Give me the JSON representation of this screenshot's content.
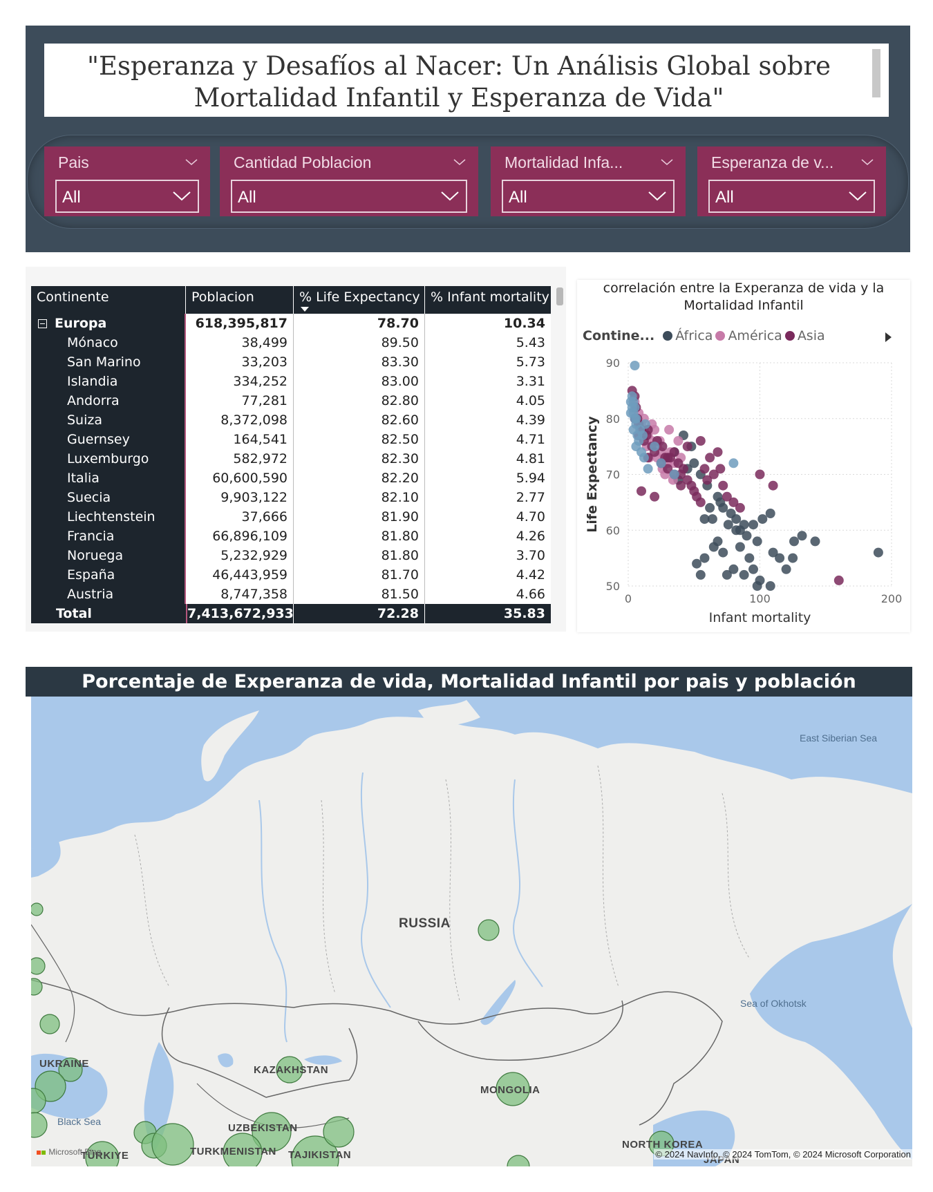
{
  "title": "\"Esperanza y Desafíos al Nacer: Un Análisis Global sobre Mortalidad Infantil y Esperanza de Vida\"",
  "slicers": [
    {
      "label": "Pais",
      "value": "All"
    },
    {
      "label": "Cantidad Poblacion",
      "value": "All"
    },
    {
      "label": "Mortalidad Infa...",
      "value": "All"
    },
    {
      "label": "Esperanza de v...",
      "value": "All"
    }
  ],
  "matrix": {
    "headers": [
      "Continente",
      "Poblacion",
      "% Life Expectancy",
      "% Infant mortality"
    ],
    "group": {
      "name": "Europa",
      "population": "618,395,817",
      "life": "78.70",
      "infant": "10.34"
    },
    "rows": [
      {
        "name": "Mónaco",
        "population": "38,499",
        "life": "89.50",
        "infant": "5.43"
      },
      {
        "name": "San Marino",
        "population": "33,203",
        "life": "83.30",
        "infant": "5.73"
      },
      {
        "name": "Islandia",
        "population": "334,252",
        "life": "83.00",
        "infant": "3.31"
      },
      {
        "name": "Andorra",
        "population": "77,281",
        "life": "82.80",
        "infant": "4.05"
      },
      {
        "name": "Suiza",
        "population": "8,372,098",
        "life": "82.60",
        "infant": "4.39"
      },
      {
        "name": "Guernsey",
        "population": "164,541",
        "life": "82.50",
        "infant": "4.71"
      },
      {
        "name": "Luxemburgo",
        "population": "582,972",
        "life": "82.30",
        "infant": "4.81"
      },
      {
        "name": "Italia",
        "population": "60,600,590",
        "life": "82.20",
        "infant": "5.94"
      },
      {
        "name": "Suecia",
        "population": "9,903,122",
        "life": "82.10",
        "infant": "2.77"
      },
      {
        "name": "Liechtenstein",
        "population": "37,666",
        "life": "81.90",
        "infant": "4.70"
      },
      {
        "name": "Francia",
        "population": "66,896,109",
        "life": "81.80",
        "infant": "4.26"
      },
      {
        "name": "Noruega",
        "population": "5,232,929",
        "life": "81.80",
        "infant": "3.70"
      },
      {
        "name": "España",
        "population": "46,443,959",
        "life": "81.70",
        "infant": "4.42"
      },
      {
        "name": "Austria",
        "population": "8,747,358",
        "life": "81.50",
        "infant": "4.66"
      }
    ],
    "total": {
      "name": "Total",
      "population": "7,413,672,933",
      "life": "72.28",
      "infant": "35.83"
    }
  },
  "scatter": {
    "title": "correlación entre la Experanza de vida y la Mortalidad Infantil",
    "legend_title": "Contine...",
    "legend": [
      {
        "name": "África",
        "color": "#3d4c5a"
      },
      {
        "name": "América",
        "color": "#c77aa8"
      },
      {
        "name": "Asia",
        "color": "#7a2a5c"
      }
    ]
  },
  "chart_data": {
    "type": "scatter",
    "title": "correlación entre la Experanza de vida y la Mortalidad Infantil",
    "xlabel": "Infant mortality",
    "ylabel": "Life Expectancy",
    "xlim": [
      0,
      200
    ],
    "ylim": [
      50,
      90
    ],
    "xticks": [
      "0",
      "100",
      "200"
    ],
    "yticks": [
      "50",
      "60",
      "70",
      "80",
      "90"
    ],
    "grid": true,
    "legend_position": "top",
    "series": [
      {
        "name": "África",
        "color": "#3d4c5a",
        "points": [
          [
            42,
            77
          ],
          [
            48,
            75
          ],
          [
            35,
            74
          ],
          [
            50,
            72
          ],
          [
            55,
            70
          ],
          [
            60,
            68
          ],
          [
            68,
            66
          ],
          [
            72,
            64
          ],
          [
            78,
            63
          ],
          [
            58,
            62
          ],
          [
            62,
            64
          ],
          [
            82,
            62
          ],
          [
            88,
            61
          ],
          [
            95,
            61
          ],
          [
            102,
            62
          ],
          [
            108,
            63
          ],
          [
            85,
            60
          ],
          [
            90,
            59
          ],
          [
            98,
            58
          ],
          [
            65,
            57
          ],
          [
            58,
            55
          ],
          [
            52,
            54
          ],
          [
            68,
            58
          ],
          [
            72,
            56
          ],
          [
            80,
            53
          ],
          [
            88,
            52
          ],
          [
            95,
            53
          ],
          [
            100,
            51
          ],
          [
            110,
            56
          ],
          [
            115,
            55
          ],
          [
            120,
            53
          ],
          [
            126,
            58
          ],
          [
            132,
            59
          ],
          [
            142,
            58
          ],
          [
            190,
            56
          ],
          [
            108,
            50
          ],
          [
            92,
            55
          ],
          [
            75,
            52
          ],
          [
            55,
            52
          ],
          [
            82,
            60
          ],
          [
            70,
            65
          ],
          [
            64,
            62
          ],
          [
            45,
            71
          ],
          [
            38,
            69
          ],
          [
            76,
            61
          ],
          [
            85,
            57
          ],
          [
            98,
            50
          ],
          [
            125,
            55
          ]
        ]
      },
      {
        "name": "América",
        "color": "#c77aa8",
        "points": [
          [
            5,
            83
          ],
          [
            8,
            81
          ],
          [
            10,
            79
          ],
          [
            12,
            78
          ],
          [
            15,
            77
          ],
          [
            18,
            76
          ],
          [
            20,
            78
          ],
          [
            22,
            75
          ],
          [
            25,
            74
          ],
          [
            28,
            73
          ],
          [
            30,
            72
          ],
          [
            32,
            74
          ],
          [
            14,
            75
          ],
          [
            16,
            73
          ],
          [
            35,
            72
          ],
          [
            18,
            79
          ],
          [
            24,
            76
          ],
          [
            26,
            71
          ],
          [
            28,
            70
          ],
          [
            34,
            69
          ],
          [
            12,
            80
          ],
          [
            31,
            78
          ],
          [
            22,
            73
          ],
          [
            38,
            76
          ],
          [
            40,
            73
          ]
        ]
      },
      {
        "name": "Asia",
        "color": "#7a2a5c",
        "points": [
          [
            3,
            85
          ],
          [
            5,
            84
          ],
          [
            6,
            82
          ],
          [
            7,
            80
          ],
          [
            8,
            79
          ],
          [
            10,
            78
          ],
          [
            12,
            76
          ],
          [
            14,
            77
          ],
          [
            15,
            73
          ],
          [
            18,
            75
          ],
          [
            20,
            74
          ],
          [
            22,
            76
          ],
          [
            25,
            72
          ],
          [
            28,
            73
          ],
          [
            30,
            71
          ],
          [
            32,
            73
          ],
          [
            35,
            74
          ],
          [
            38,
            72
          ],
          [
            40,
            70
          ],
          [
            42,
            71
          ],
          [
            45,
            69
          ],
          [
            48,
            68
          ],
          [
            50,
            67
          ],
          [
            52,
            66
          ],
          [
            55,
            65
          ],
          [
            58,
            71
          ],
          [
            60,
            69
          ],
          [
            62,
            73
          ],
          [
            65,
            70
          ],
          [
            68,
            74
          ],
          [
            70,
            71
          ],
          [
            72,
            68
          ],
          [
            75,
            66
          ],
          [
            80,
            65
          ],
          [
            85,
            64
          ],
          [
            100,
            70
          ],
          [
            110,
            68
          ],
          [
            160,
            51
          ],
          [
            10,
            67
          ],
          [
            20,
            66
          ],
          [
            26,
            75
          ],
          [
            30,
            73
          ],
          [
            45,
            75
          ],
          [
            55,
            76
          ],
          [
            35,
            70
          ],
          [
            5,
            80
          ],
          [
            8,
            77
          ],
          [
            15,
            78
          ],
          [
            40,
            68
          ]
        ]
      },
      {
        "name": "Europa",
        "color": "#6f9cbd",
        "points": [
          [
            5,
            89.5
          ],
          [
            2,
            83
          ],
          [
            3,
            82
          ],
          [
            4,
            81
          ],
          [
            5,
            80
          ],
          [
            6,
            79
          ],
          [
            4,
            78
          ],
          [
            7,
            77
          ],
          [
            8,
            76
          ],
          [
            6,
            75
          ],
          [
            10,
            74
          ],
          [
            12,
            73
          ],
          [
            15,
            71
          ],
          [
            20,
            75
          ],
          [
            25,
            72
          ],
          [
            80,
            72
          ],
          [
            35,
            70
          ],
          [
            3,
            84
          ],
          [
            4,
            83
          ],
          [
            5,
            82
          ],
          [
            2,
            81
          ],
          [
            6,
            80
          ],
          [
            9,
            78
          ],
          [
            11,
            77
          ],
          [
            13,
            79
          ]
        ]
      }
    ]
  },
  "map": {
    "title": "Porcentaje de Experanza de vida, Mortalidad Infantil por pais y población",
    "labels": [
      {
        "text": "RUSSIA",
        "kind": "country big"
      },
      {
        "text": "KAZAKHSTAN",
        "kind": "country"
      },
      {
        "text": "MONGOLIA",
        "kind": "country"
      },
      {
        "text": "UKRAINE",
        "kind": "country"
      },
      {
        "text": "UZBEKISTAN",
        "kind": "country"
      },
      {
        "text": "TURKMENISTAN",
        "kind": "country"
      },
      {
        "text": "TAJIKISTAN",
        "kind": "country"
      },
      {
        "text": "TÜRKIYE",
        "kind": "country"
      },
      {
        "text": "NORTH KOREA",
        "kind": "country"
      },
      {
        "text": "JAPAN",
        "kind": "country"
      },
      {
        "text": "Black Sea",
        "kind": "sea"
      },
      {
        "text": "East Siberian Sea",
        "kind": "sea"
      },
      {
        "text": "Sea of Okhotsk",
        "kind": "sea"
      }
    ],
    "credit": "© 2024 NavInfo, © 2024 TomTom, © 2024 Microsoft Corporation",
    "logo": "Microsoft Bing"
  }
}
